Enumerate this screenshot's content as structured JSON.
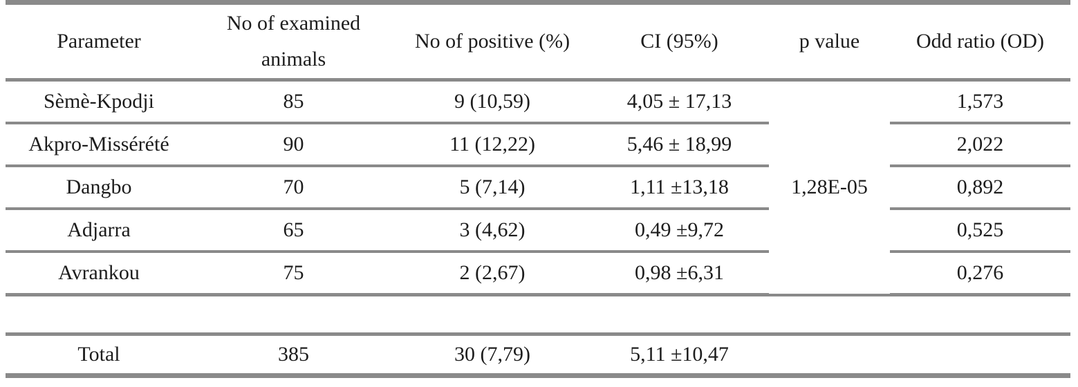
{
  "table": {
    "headers": {
      "parameter": "Parameter",
      "examined_line1": "No of examined",
      "examined_line2": "animals",
      "positive": "No of positive (%)",
      "ci": "CI (95%)",
      "p": "p value",
      "odd": "Odd ratio (OD)"
    },
    "rows": [
      {
        "parameter": "Sèmè-Kpodji",
        "examined": "85",
        "positive": "9 (10,59)",
        "ci": "4,05 ± 17,13",
        "odd": "1,573"
      },
      {
        "parameter": "Akpro-Missérété",
        "examined": "90",
        "positive": "11 (12,22)",
        "ci": "5,46 ± 18,99",
        "odd": "2,022"
      },
      {
        "parameter": "Dangbo",
        "examined": "70",
        "positive": "5 (7,14)",
        "ci": "1,11 ±13,18",
        "odd": "0,892"
      },
      {
        "parameter": "Adjarra",
        "examined": "65",
        "positive": "3 (4,62)",
        "ci": "0,49 ±9,72",
        "odd": "0,525"
      },
      {
        "parameter": "Avrankou",
        "examined": "75",
        "positive": "2 (2,67)",
        "ci": "0,98 ±6,31",
        "odd": "0,276"
      }
    ],
    "p_value": "1,28E-05",
    "total": {
      "parameter": "Total",
      "examined": "385",
      "positive": "30 (7,79)",
      "ci": "5,11 ±10,47"
    }
  },
  "colors": {
    "border": "#8a8a8a",
    "text": "#1d1d1d",
    "background": "#ffffff"
  }
}
